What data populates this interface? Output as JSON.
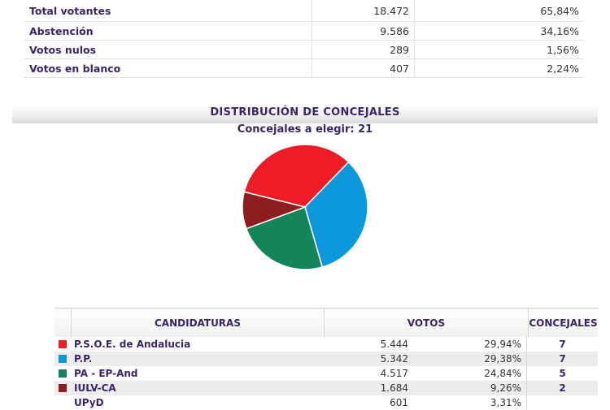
{
  "summary": [
    {
      "label": "Total votantes",
      "value": "18.472",
      "pct": "65,84%"
    },
    {
      "label": "Abstención",
      "value": "9.586",
      "pct": "34,16%"
    },
    {
      "label": "Votos nulos",
      "value": "289",
      "pct": "1,56%"
    },
    {
      "label": "Votos en blanco",
      "value": "407",
      "pct": "2,24%"
    }
  ],
  "section": {
    "title": "DISTRIBUCIÓN DE CONCEJALES",
    "subtitle": "Concejales a elegir: 21"
  },
  "chart_data": {
    "type": "pie",
    "labels": [
      "P.S.O.E. de Andalucia",
      "P.P.",
      "PA - EP-And",
      "IULV-CA"
    ],
    "values": [
      7,
      7,
      5,
      2
    ],
    "colors": [
      "#ee1c25",
      "#0c96dc",
      "#14855a",
      "#8e1d20"
    ]
  },
  "table": {
    "headers": {
      "candidaturas": "CANDIDATURAS",
      "votos": "VOTOS",
      "concejales": "CONCEJALES"
    },
    "rows": [
      {
        "name": "P.S.O.E. de Andalucia",
        "votes": "5.444",
        "pct": "29,94%",
        "seats": "7",
        "color": "#ee1c25"
      },
      {
        "name": "P.P.",
        "votes": "5.342",
        "pct": "29,38%",
        "seats": "7",
        "color": "#0c96dc"
      },
      {
        "name": "PA - EP-And",
        "votes": "4.517",
        "pct": "24,84%",
        "seats": "5",
        "color": "#14855a"
      },
      {
        "name": "IULV-CA",
        "votes": "1.684",
        "pct": "9,26%",
        "seats": "2",
        "color": "#8e1d20"
      },
      {
        "name": "UPyD",
        "votes": "601",
        "pct": "3,31%",
        "seats": "",
        "color": ""
      }
    ]
  }
}
